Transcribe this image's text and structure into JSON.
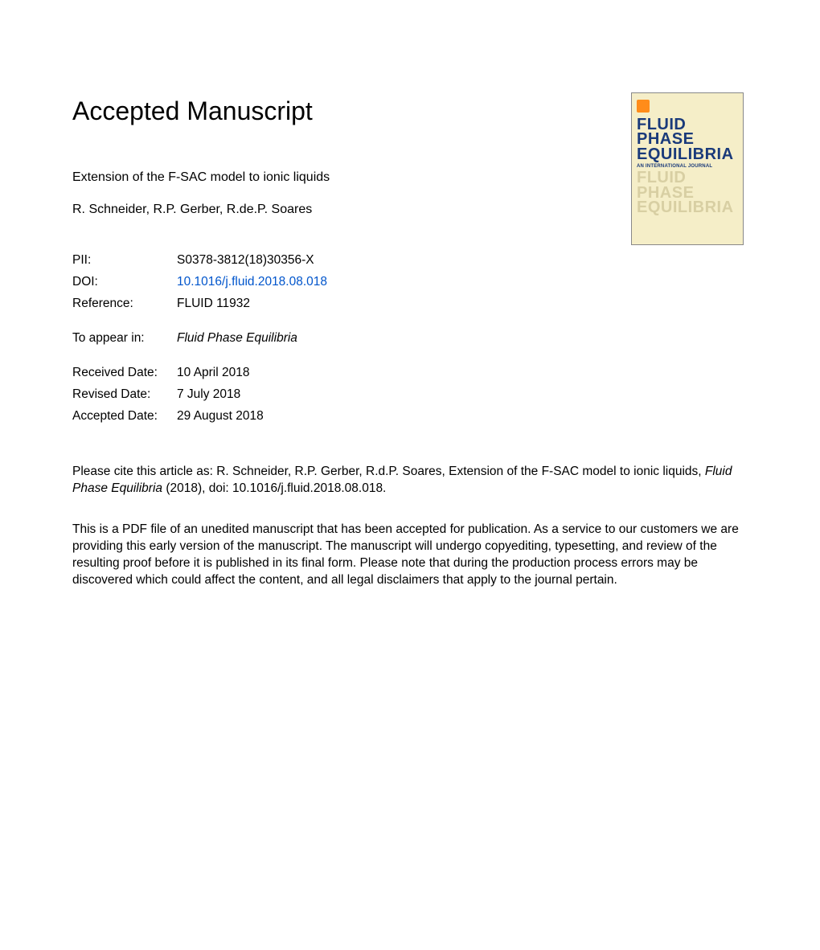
{
  "heading": "Accepted Manuscript",
  "article_title": "Extension of the F-SAC model to ionic liquids",
  "authors": "R. Schneider, R.P. Gerber, R.de.P. Soares",
  "meta": {
    "pii_label": "PII:",
    "pii_value": "S0378-3812(18)30356-X",
    "doi_label": "DOI:",
    "doi_value": "10.1016/j.fluid.2018.08.018",
    "reference_label": "Reference:",
    "reference_value": "FLUID 11932",
    "appear_label": "To appear in:",
    "appear_value": "Fluid Phase Equilibria",
    "received_label": "Received Date:",
    "received_value": "10 April 2018",
    "revised_label": "Revised Date:",
    "revised_value": "7 July 2018",
    "accepted_label": "Accepted Date:",
    "accepted_value": "29 August 2018"
  },
  "citation_prefix": "Please cite this article as: R. Schneider, R.P. Gerber, R.d.P. Soares, Extension of the F-SAC model to ionic liquids, ",
  "citation_journal": "Fluid Phase Equilibria",
  "citation_suffix": " (2018), doi: 10.1016/j.fluid.2018.08.018.",
  "disclaimer": "This is a PDF file of an unedited manuscript that has been accepted for publication. As a service to our customers we are providing this early version of the manuscript. The manuscript will undergo copyediting, typesetting, and review of the resulting proof before it is published in its final form. Please note that during the production process errors may be discovered which could affect the content, and all legal disclaimers that apply to the journal pertain.",
  "journal_cover": {
    "title_line1": "FLUID PHASE",
    "title_line2": "EQUILIBRIA",
    "subtitle": "AN INTERNATIONAL JOURNAL",
    "ghost_line1": "FLUID PHASE",
    "ghost_line2": "EQUILIBRIA",
    "background_color": "#f5eec8",
    "title_color": "#1a3a7a",
    "ghost_color": "#d8cfa3",
    "logo_color": "#ff8c1a"
  },
  "colors": {
    "background": "#ffffff",
    "text": "#000000",
    "link": "#0055cc"
  },
  "fonts": {
    "body_size": 15.5,
    "heading_size": 32
  }
}
